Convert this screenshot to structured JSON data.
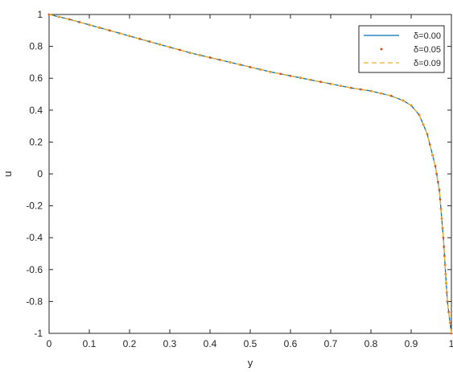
{
  "chart_data": {
    "type": "line",
    "xlabel": "y",
    "ylabel": "u",
    "xlim": [
      0,
      1
    ],
    "ylim": [
      -1,
      1
    ],
    "grid": false,
    "legend_position": "top-right",
    "x_ticks": [
      "0",
      "0.1",
      "0.2",
      "0.3",
      "0.4",
      "0.5",
      "0.6",
      "0.7",
      "0.8",
      "0.9",
      "1"
    ],
    "y_ticks": [
      "1",
      "0.8",
      "0.6",
      "0.4",
      "0.2",
      "0",
      "-0.2",
      "-0.4",
      "-0.6",
      "-0.8",
      "-1"
    ],
    "x": [
      0,
      0.05,
      0.1,
      0.15,
      0.2,
      0.25,
      0.3,
      0.35,
      0.4,
      0.45,
      0.5,
      0.55,
      0.6,
      0.65,
      0.7,
      0.75,
      0.8,
      0.85,
      0.88,
      0.9,
      0.92,
      0.94,
      0.96,
      0.97,
      0.98,
      0.99,
      1
    ],
    "series": [
      {
        "name": "δ=0.00",
        "style": "solid",
        "color": "#0072BD",
        "values": [
          1.0,
          0.97,
          0.935,
          0.9,
          0.865,
          0.83,
          0.795,
          0.76,
          0.73,
          0.7,
          0.67,
          0.64,
          0.615,
          0.59,
          0.565,
          0.54,
          0.52,
          0.49,
          0.46,
          0.43,
          0.37,
          0.25,
          0.05,
          -0.1,
          -0.4,
          -0.8,
          -1.0
        ]
      },
      {
        "name": "δ=0.05",
        "style": "dots",
        "color": "#D95319",
        "values": [
          1.0,
          0.97,
          0.935,
          0.9,
          0.865,
          0.83,
          0.795,
          0.76,
          0.73,
          0.7,
          0.67,
          0.64,
          0.615,
          0.59,
          0.565,
          0.54,
          0.52,
          0.49,
          0.46,
          0.43,
          0.37,
          0.25,
          0.05,
          -0.1,
          -0.4,
          -0.8,
          -1.0
        ]
      },
      {
        "name": "δ=0.09",
        "style": "dashed",
        "color": "#EDB120",
        "values": [
          1.0,
          0.97,
          0.935,
          0.9,
          0.865,
          0.83,
          0.795,
          0.76,
          0.73,
          0.7,
          0.67,
          0.64,
          0.615,
          0.59,
          0.565,
          0.54,
          0.52,
          0.49,
          0.46,
          0.43,
          0.37,
          0.25,
          0.05,
          -0.1,
          -0.4,
          -0.8,
          -1.0
        ]
      }
    ]
  }
}
